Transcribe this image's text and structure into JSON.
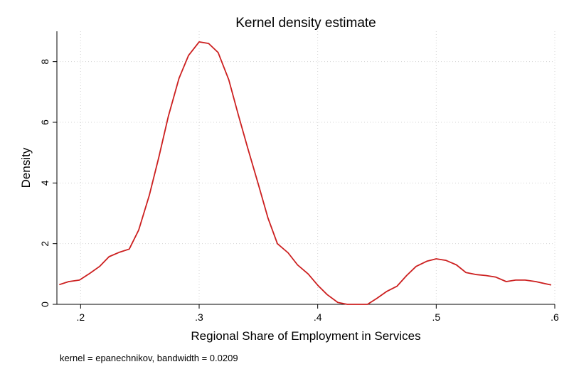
{
  "chart_data": {
    "type": "line",
    "title": "Kernel density estimate",
    "xlabel": "Regional Share of Employment in Services",
    "ylabel": "Density",
    "note": "kernel = epanechnikov, bandwidth = 0.0209",
    "xlim": [
      0.18,
      0.6
    ],
    "ylim": [
      0,
      9
    ],
    "xticks": [
      0.2,
      0.3,
      0.4,
      0.5,
      0.6
    ],
    "xtick_labels": [
      ".2",
      ".3",
      ".4",
      ".5",
      ".6"
    ],
    "yticks": [
      0,
      2,
      4,
      6,
      8
    ],
    "ytick_labels": [
      "0",
      "2",
      "4",
      "6",
      "8"
    ],
    "grid": true,
    "colors": {
      "line": "#cc1f1f",
      "grid": "#d4d4d4",
      "axis": "#000000"
    },
    "series": [
      {
        "name": "density",
        "x": [
          0.182,
          0.19,
          0.199,
          0.207,
          0.216,
          0.224,
          0.233,
          0.241,
          0.249,
          0.258,
          0.266,
          0.274,
          0.283,
          0.291,
          0.3,
          0.308,
          0.316,
          0.325,
          0.333,
          0.341,
          0.35,
          0.358,
          0.366,
          0.375,
          0.383,
          0.392,
          0.4,
          0.408,
          0.417,
          0.425,
          0.433,
          0.442,
          0.45,
          0.458,
          0.467,
          0.475,
          0.483,
          0.492,
          0.5,
          0.508,
          0.517,
          0.525,
          0.534,
          0.542,
          0.55,
          0.559,
          0.567,
          0.575,
          0.584,
          0.592,
          0.597
        ],
        "y": [
          0.65,
          0.75,
          0.8,
          1.0,
          1.25,
          1.57,
          1.72,
          1.82,
          2.45,
          3.6,
          4.85,
          6.2,
          7.45,
          8.2,
          8.65,
          8.6,
          8.3,
          7.4,
          6.25,
          5.15,
          3.95,
          2.85,
          2.0,
          1.7,
          1.3,
          1.0,
          0.63,
          0.32,
          0.06,
          0.0,
          0.0,
          0.0,
          0.2,
          0.42,
          0.6,
          0.95,
          1.25,
          1.42,
          1.5,
          1.45,
          1.3,
          1.05,
          0.98,
          0.95,
          0.9,
          0.75,
          0.8,
          0.8,
          0.75,
          0.68,
          0.64
        ]
      }
    ]
  }
}
